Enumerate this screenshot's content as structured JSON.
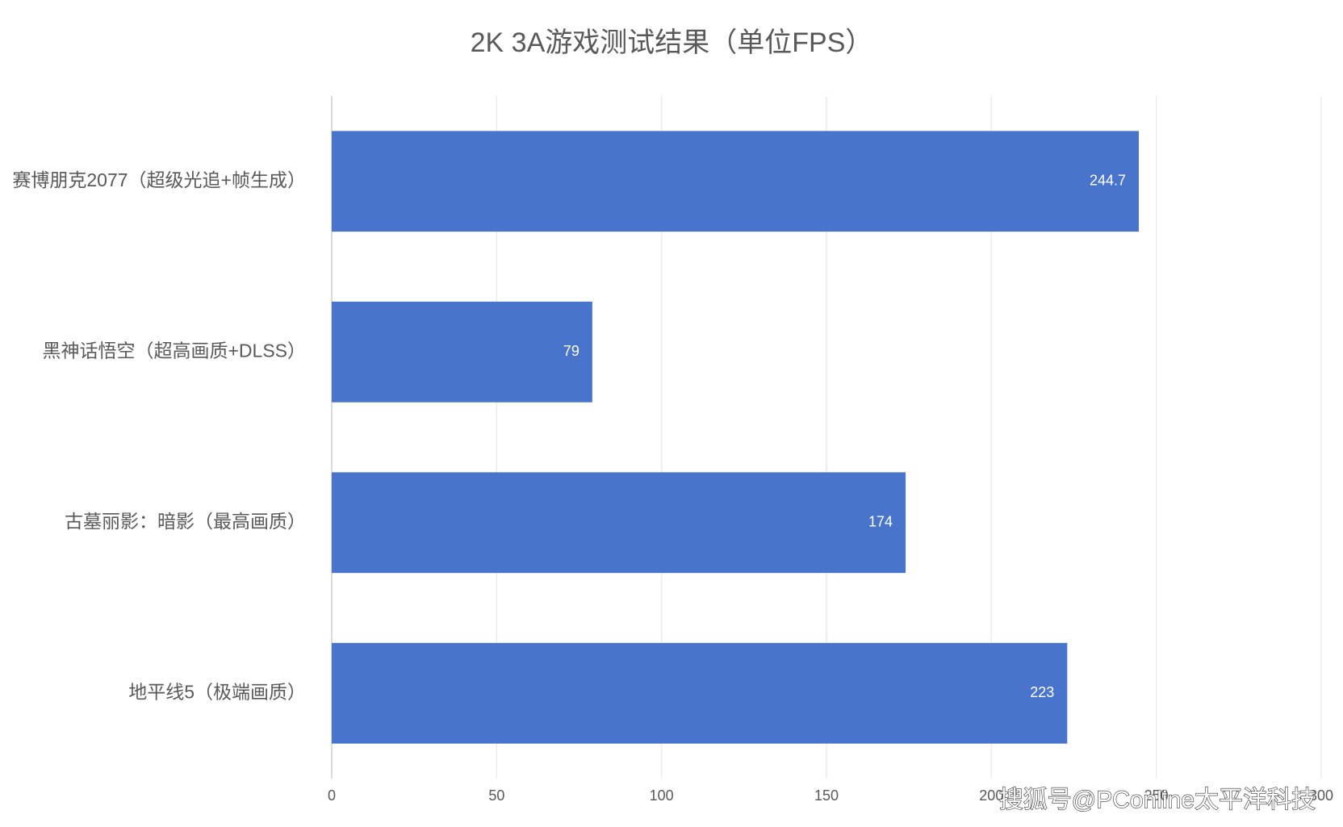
{
  "chart_data": {
    "type": "bar",
    "orientation": "horizontal",
    "title": "2K 3A游戏测试结果（单位FPS）",
    "categories": [
      "赛博朋克2077（超级光追+帧生成）",
      "黑神话悟空（超高画质+DLSS）",
      "古墓丽影：暗影（最高画质）",
      "地平线5（极端画质）"
    ],
    "values": [
      244.7,
      79,
      174,
      223
    ],
    "color": "#4874cb",
    "xlim": [
      0,
      300
    ],
    "xticks": [
      0,
      50,
      100,
      150,
      200,
      250,
      300
    ],
    "grid": true
  },
  "watermark": "搜狐号@PConline太平洋科技"
}
